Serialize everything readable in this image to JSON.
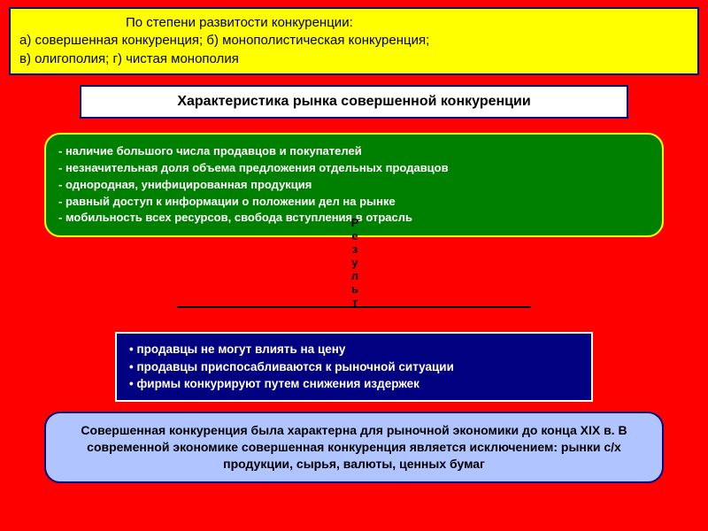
{
  "yellow": {
    "line1": "По степени развитости конкуренции:",
    "line2": "а) совершенная конкуренция; б) монополистическая конкуренция;",
    "line3": "в) олигополия; г) чистая монополия"
  },
  "whiteTitle": "Характеристика рынка совершенной конкуренции",
  "greenList": {
    "i1": "- наличие большого числа продавцов и покупателей",
    "i2": "- незначительная доля объема предложения отдельных продавцов",
    "i3": "- однородная, унифицированная продукция",
    "i4": "- равный доступ к информации о положении дел на рынке",
    "i5": "- мобильность всех ресурсов, свобода вступления в отрасль"
  },
  "verticalLabel": [
    "Р",
    "е",
    "з",
    "у",
    "л",
    "ь",
    "т"
  ],
  "navyList": {
    "i1": "• продавцы не могут влиять на цену",
    "i2": "• продавцы приспосабливаются к рыночной ситуации",
    "i3": "• фирмы конкурируют путем снижения издержек"
  },
  "blueText": "Совершенная конкуренция была характерна для рыночной экономики до конца XIX в. В современной экономике совершенная конкуренция является исключением: рынки с/х продукции, сырья, валюты, ценных бумаг",
  "colors": {
    "bg": "#ff0000",
    "yellow": "#ffff00",
    "navy": "#000080",
    "green": "#008000",
    "lightblue": "#b0c4ff",
    "white": "#ffffff",
    "black": "#000000"
  }
}
